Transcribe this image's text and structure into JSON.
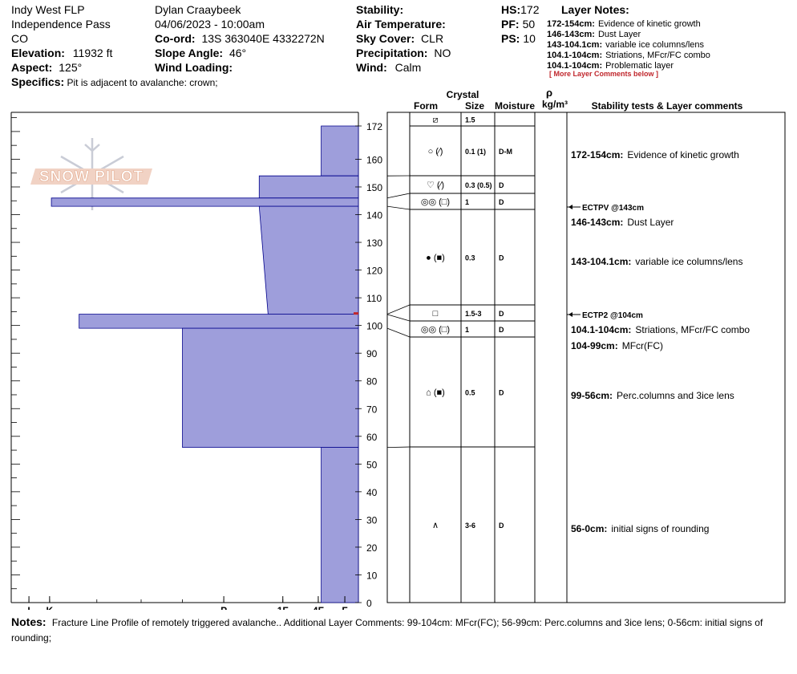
{
  "header": {
    "site": "Indy West FLP",
    "location": "Independence Pass",
    "state": "CO",
    "elevation_label": "Elevation:",
    "elevation_value": "11932 ft",
    "aspect_label": "Aspect:",
    "aspect_value": "125°",
    "observer": "Dylan Craaybeek",
    "datetime": "04/06/2023 - 10:00am",
    "coord_label": "Co-ord:",
    "coord_value": "13S 363040E 4332272N",
    "slope_label": "Slope Angle:",
    "slope_value": "46°",
    "wind_loading_label": "Wind Loading:",
    "wind_loading_value": "",
    "stability_label": "Stability:",
    "stability_value": "",
    "air_temp_label": "Air Temperature:",
    "air_temp_value": "",
    "sky_label": "Sky Cover:",
    "sky_value": "CLR",
    "precip_label": "Precipitation:",
    "precip_value": "NO",
    "wind_label": "Wind:",
    "wind_value": "Calm",
    "hs_label": "HS:",
    "hs_value": "172",
    "pf_label": "PF:",
    "pf_value": "50",
    "ps_label": "PS:",
    "ps_value": "10",
    "specifics_label": "Specifics:",
    "specifics_value": "Pit is adjacent to avalanche: crown;"
  },
  "layer_notes": {
    "title": "Layer Notes:",
    "items": [
      {
        "range": "172-154cm:",
        "text": "Evidence of kinetic growth"
      },
      {
        "range": "146-143cm:",
        "text": "Dust Layer"
      },
      {
        "range": "143-104.1cm:",
        "text": "variable ice columns/lens"
      },
      {
        "range": "104.1-104cm:",
        "text": "Striations, MFcr/FC combo"
      },
      {
        "range": "104.1-104cm:",
        "text": "Problematic layer"
      }
    ],
    "more": "[ More Layer Comments below ]"
  },
  "logo_text": "SNOW PILOT",
  "table": {
    "header_crystal": "Crystal",
    "header_form": "Form",
    "header_size": "Size",
    "header_moisture": "Moisture",
    "header_rho": "ρ",
    "header_density": "kg/m³",
    "header_comments": "Stability tests & Layer comments",
    "rows": [
      {
        "top": 172,
        "bottom": 167,
        "form": "⧄",
        "size": "1.5",
        "moisture": ""
      },
      {
        "top": 167,
        "bottom": 154,
        "form": "○ (⁄)",
        "size": "0.1 (1)",
        "moisture": "D-M"
      },
      {
        "top": 154,
        "bottom": 146,
        "form": "♡ (⁄)",
        "size": "0.3 (0.5)",
        "moisture": "D"
      },
      {
        "top": 146,
        "bottom": 143,
        "form": "◎◎ (□)",
        "size": "1",
        "moisture": "D"
      },
      {
        "top": 143,
        "bottom": 104.1,
        "form": "● (■)",
        "size": "0.3",
        "moisture": "D"
      },
      {
        "top": 104.1,
        "bottom": 104,
        "form": "□",
        "size": "1.5-3",
        "moisture": "D"
      },
      {
        "top": 104,
        "bottom": 99,
        "form": "◎◎ (□)",
        "size": "1",
        "moisture": "D"
      },
      {
        "top": 99,
        "bottom": 56,
        "form": "⌂ (■)",
        "size": "0.5",
        "moisture": "D"
      },
      {
        "top": 56,
        "bottom": 0,
        "form": "∧",
        "size": "3-6",
        "moisture": "D"
      }
    ],
    "comments": [
      {
        "depth": 163,
        "range": "172-154cm:",
        "text": "Evidence of kinetic growth"
      },
      {
        "depth": 137,
        "range": "146-143cm:",
        "text": "Dust Layer"
      },
      {
        "depth": 122,
        "range": "143-104.1cm:",
        "text": "variable ice columns/lens"
      },
      {
        "depth": 99,
        "range": "104.1-104cm:",
        "text": "Striations, MFcr/FC combo"
      },
      {
        "depth": 93,
        "range": "104-99cm:",
        "text": "MFcr(FC)"
      },
      {
        "depth": 75,
        "range": "99-56cm:",
        "text": "Perc.columns and 3ice lens"
      },
      {
        "depth": 26,
        "range": "56-0cm:",
        "text": "initial signs of rounding"
      }
    ],
    "tests": [
      {
        "depth": 143,
        "label": "ECTPV @143cm"
      },
      {
        "depth": 104,
        "label": "ECTP2 @104cm"
      }
    ]
  },
  "chart_data": {
    "type": "area",
    "title": "",
    "xlabel": "",
    "ylabel": "",
    "ylim": [
      0,
      180
    ],
    "y_ticks": [
      0,
      10,
      20,
      30,
      40,
      50,
      60,
      70,
      80,
      90,
      100,
      110,
      120,
      130,
      140,
      150,
      160,
      172
    ],
    "x_ticks": [
      "I",
      "K",
      "P",
      "1F",
      "4F",
      "F"
    ],
    "x_tick_values": [
      0.3,
      0.65,
      3.6,
      4.6,
      5.2,
      5.65
    ],
    "x_max": 5.88,
    "fill_color": "#9e9edb",
    "edge_color": "#00008b",
    "hardness_profile": [
      {
        "top": 172,
        "bottom": 154,
        "hardness_top": 5.25,
        "hardness_bottom": 5.25
      },
      {
        "top": 154,
        "bottom": 146,
        "hardness_top": 4.2,
        "hardness_bottom": 4.2
      },
      {
        "top": 146,
        "bottom": 143,
        "hardness_top": 0.68,
        "hardness_bottom": 0.68
      },
      {
        "top": 143,
        "bottom": 104.1,
        "hardness_top": 4.2,
        "hardness_bottom": 4.35
      },
      {
        "top": 104.1,
        "bottom": 99,
        "hardness_top": 1.15,
        "hardness_bottom": 1.15
      },
      {
        "top": 99,
        "bottom": 56,
        "hardness_top": 2.9,
        "hardness_bottom": 2.9
      },
      {
        "top": 56,
        "bottom": 0,
        "hardness_top": 5.25,
        "hardness_bottom": 5.25
      }
    ]
  },
  "notes": {
    "label": "Notes:",
    "text": "Fracture Line Profile of remotely triggered avalanche.. Additional Layer Comments: 99-104cm: MFcr(FC); 56-99cm: Perc.columns and 3ice lens; 0-56cm: initial signs of rounding;"
  }
}
